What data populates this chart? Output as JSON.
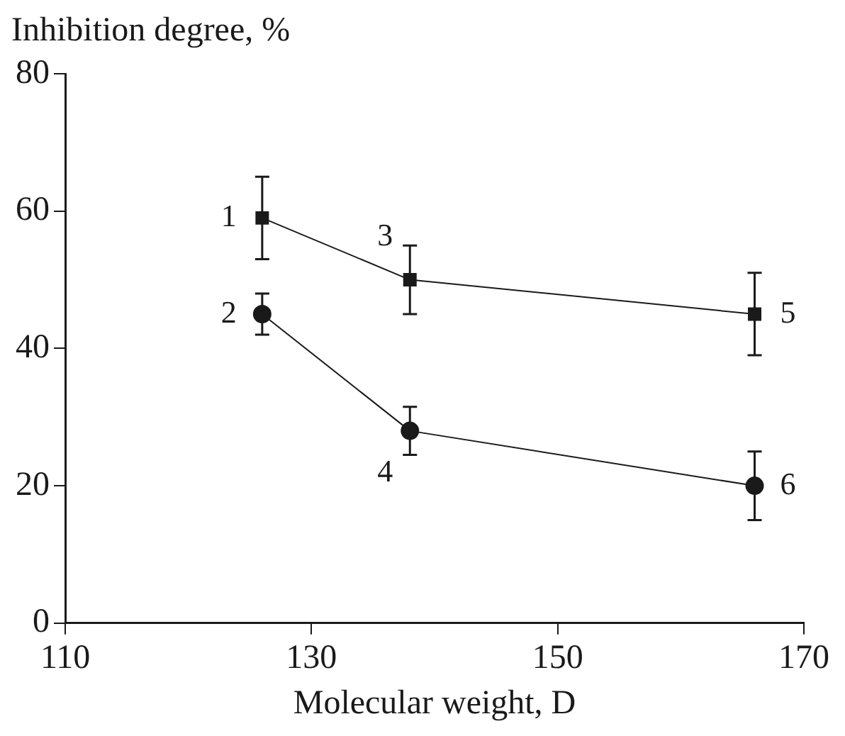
{
  "chart_data": {
    "type": "line",
    "xlabel": "Molecular weight, D",
    "ylabel": "Inhibition degree, %",
    "xlim": [
      110,
      170
    ],
    "xticks": [
      110,
      130,
      150,
      170
    ],
    "ylim": [
      0,
      80
    ],
    "yticks": [
      0,
      20,
      40,
      60,
      80
    ],
    "grid": false,
    "legend": false,
    "series": [
      {
        "color": "#1a1a1a",
        "marker": "square",
        "x": [
          126,
          138,
          166
        ],
        "values": [
          59,
          50,
          45
        ],
        "errors": [
          6,
          5,
          6
        ]
      },
      {
        "color": "#1a1a1a",
        "marker": "circle",
        "x": [
          126,
          138,
          166
        ],
        "values": [
          45,
          28,
          20
        ],
        "errors": [
          3,
          3.5,
          5
        ]
      }
    ],
    "annotations": [
      {
        "text": "1",
        "x": 126,
        "y": 59
      },
      {
        "text": "2",
        "x": 126,
        "y": 45
      },
      {
        "text": "3",
        "x": 138,
        "y": 50
      },
      {
        "text": "4",
        "x": 138,
        "y": 28
      },
      {
        "text": "5",
        "x": 166,
        "y": 45
      },
      {
        "text": "6",
        "x": 166,
        "y": 20
      }
    ]
  }
}
